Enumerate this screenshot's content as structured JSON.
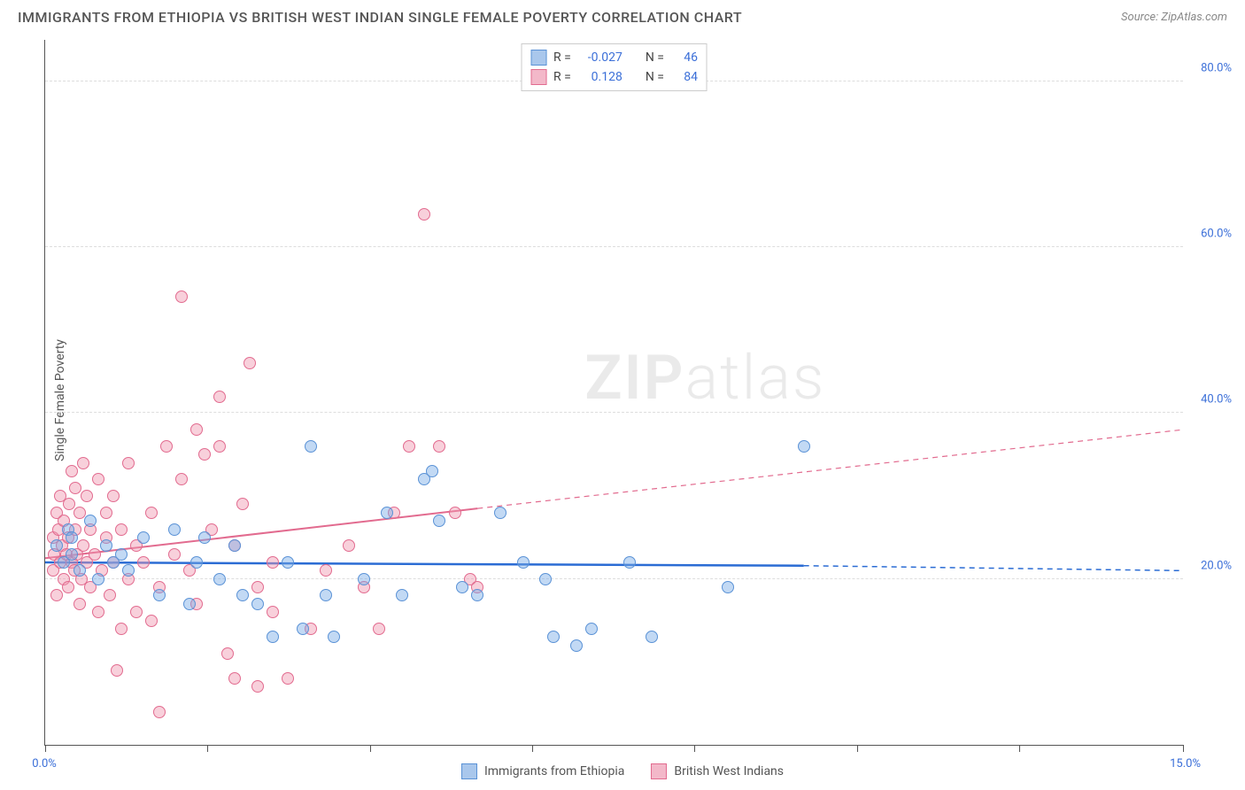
{
  "title": "IMMIGRANTS FROM ETHIOPIA VS BRITISH WEST INDIAN SINGLE FEMALE POVERTY CORRELATION CHART",
  "source": "Source: ZipAtlas.com",
  "watermark": {
    "zip": "ZIP",
    "atlas": "atlas"
  },
  "chart": {
    "type": "scatter",
    "y_axis": {
      "label": "Single Female Poverty",
      "min": 0,
      "max": 85,
      "gridlines": [
        20,
        40,
        60,
        80
      ],
      "tick_labels": [
        "20.0%",
        "40.0%",
        "60.0%",
        "80.0%"
      ],
      "label_color": "#3b6fd8",
      "label_fontsize": 13,
      "grid_color": "#dddddd"
    },
    "x_axis": {
      "min": 0,
      "max": 15,
      "ticks": [
        0,
        2.14,
        4.28,
        6.42,
        8.56,
        10.7,
        12.84,
        15
      ],
      "end_labels": {
        "left": "0.0%",
        "right": "15.0%"
      },
      "label_color": "#3b6fd8"
    },
    "background_color": "#ffffff",
    "series": [
      {
        "name": "Immigrants from Ethiopia",
        "key": "ethiopia",
        "fill": "rgba(120,170,230,0.45)",
        "stroke": "#5a92d6",
        "swatch_fill": "#a9c7ec",
        "swatch_border": "#5a92d6",
        "R": "-0.027",
        "N": "46",
        "trend": {
          "color": "#2b6cd4",
          "width": 2.5,
          "solid_x_range": [
            0,
            10.0
          ],
          "y_start": 22.0,
          "y_end_solid": 21.6,
          "y_end_dash": 21.0
        },
        "points": [
          [
            0.15,
            24
          ],
          [
            0.25,
            22
          ],
          [
            0.3,
            26
          ],
          [
            0.35,
            23
          ],
          [
            0.35,
            25
          ],
          [
            0.45,
            21
          ],
          [
            0.6,
            27
          ],
          [
            0.7,
            20
          ],
          [
            0.8,
            24
          ],
          [
            0.9,
            22
          ],
          [
            1.0,
            23
          ],
          [
            1.1,
            21
          ],
          [
            1.3,
            25
          ],
          [
            1.5,
            18
          ],
          [
            1.7,
            26
          ],
          [
            1.9,
            17
          ],
          [
            2.0,
            22
          ],
          [
            2.1,
            25
          ],
          [
            2.3,
            20
          ],
          [
            2.5,
            24
          ],
          [
            2.6,
            18
          ],
          [
            2.8,
            17
          ],
          [
            3.0,
            13
          ],
          [
            3.2,
            22
          ],
          [
            3.4,
            14
          ],
          [
            3.5,
            36
          ],
          [
            3.7,
            18
          ],
          [
            3.8,
            13
          ],
          [
            4.2,
            20
          ],
          [
            4.5,
            28
          ],
          [
            4.7,
            18
          ],
          [
            5.0,
            32
          ],
          [
            5.1,
            33
          ],
          [
            5.2,
            27
          ],
          [
            5.5,
            19
          ],
          [
            5.7,
            18
          ],
          [
            6.0,
            28
          ],
          [
            6.3,
            22
          ],
          [
            6.6,
            20
          ],
          [
            6.7,
            13
          ],
          [
            7.0,
            12
          ],
          [
            7.2,
            14
          ],
          [
            7.7,
            22
          ],
          [
            8.0,
            13
          ],
          [
            9.0,
            19
          ],
          [
            10.0,
            36
          ]
        ]
      },
      {
        "name": "British West Indians",
        "key": "bwi",
        "fill": "rgba(240,150,175,0.45)",
        "stroke": "#e26b8f",
        "swatch_fill": "#f3b8c9",
        "swatch_border": "#e26b8f",
        "R": "0.128",
        "N": "84",
        "trend": {
          "color": "#e26b8f",
          "width": 2,
          "solid_x_range": [
            0,
            5.7
          ],
          "y_start": 22.5,
          "y_end_solid": 28.5,
          "y_end_dash": 38.0
        },
        "points": [
          [
            0.1,
            21
          ],
          [
            0.1,
            25
          ],
          [
            0.12,
            23
          ],
          [
            0.15,
            28
          ],
          [
            0.15,
            18
          ],
          [
            0.18,
            26
          ],
          [
            0.2,
            22
          ],
          [
            0.2,
            30
          ],
          [
            0.22,
            24
          ],
          [
            0.25,
            20
          ],
          [
            0.25,
            27
          ],
          [
            0.28,
            23
          ],
          [
            0.3,
            25
          ],
          [
            0.3,
            19
          ],
          [
            0.32,
            29
          ],
          [
            0.35,
            22
          ],
          [
            0.35,
            33
          ],
          [
            0.38,
            21
          ],
          [
            0.4,
            26
          ],
          [
            0.4,
            31
          ],
          [
            0.42,
            23
          ],
          [
            0.45,
            28
          ],
          [
            0.45,
            17
          ],
          [
            0.48,
            20
          ],
          [
            0.5,
            24
          ],
          [
            0.5,
            34
          ],
          [
            0.55,
            22
          ],
          [
            0.55,
            30
          ],
          [
            0.6,
            19
          ],
          [
            0.6,
            26
          ],
          [
            0.65,
            23
          ],
          [
            0.7,
            32
          ],
          [
            0.7,
            16
          ],
          [
            0.75,
            21
          ],
          [
            0.8,
            28
          ],
          [
            0.8,
            25
          ],
          [
            0.85,
            18
          ],
          [
            0.9,
            30
          ],
          [
            0.9,
            22
          ],
          [
            0.95,
            9
          ],
          [
            1.0,
            26
          ],
          [
            1.0,
            14
          ],
          [
            1.1,
            34
          ],
          [
            1.1,
            20
          ],
          [
            1.2,
            16
          ],
          [
            1.2,
            24
          ],
          [
            1.3,
            22
          ],
          [
            1.4,
            28
          ],
          [
            1.4,
            15
          ],
          [
            1.5,
            4
          ],
          [
            1.5,
            19
          ],
          [
            1.6,
            36
          ],
          [
            1.7,
            23
          ],
          [
            1.8,
            32
          ],
          [
            1.8,
            54
          ],
          [
            1.9,
            21
          ],
          [
            2.0,
            38
          ],
          [
            2.0,
            17
          ],
          [
            2.1,
            35
          ],
          [
            2.2,
            26
          ],
          [
            2.3,
            36
          ],
          [
            2.3,
            42
          ],
          [
            2.4,
            11
          ],
          [
            2.5,
            8
          ],
          [
            2.5,
            24
          ],
          [
            2.6,
            29
          ],
          [
            2.7,
            46
          ],
          [
            2.8,
            19
          ],
          [
            2.8,
            7
          ],
          [
            3.0,
            16
          ],
          [
            3.0,
            22
          ],
          [
            3.2,
            8
          ],
          [
            3.5,
            14
          ],
          [
            3.7,
            21
          ],
          [
            4.0,
            24
          ],
          [
            4.2,
            19
          ],
          [
            4.4,
            14
          ],
          [
            4.6,
            28
          ],
          [
            4.8,
            36
          ],
          [
            5.0,
            64
          ],
          [
            5.2,
            36
          ],
          [
            5.4,
            28
          ],
          [
            5.6,
            20
          ],
          [
            5.7,
            19
          ]
        ]
      }
    ],
    "marker_radius": 7
  },
  "legend_top": {
    "rows": [
      {
        "series_idx": 0,
        "R_label": "R =",
        "N_label": "N ="
      },
      {
        "series_idx": 1,
        "R_label": "R =",
        "N_label": "N ="
      }
    ]
  },
  "legend_bottom": [
    {
      "series_idx": 0
    },
    {
      "series_idx": 1
    }
  ]
}
